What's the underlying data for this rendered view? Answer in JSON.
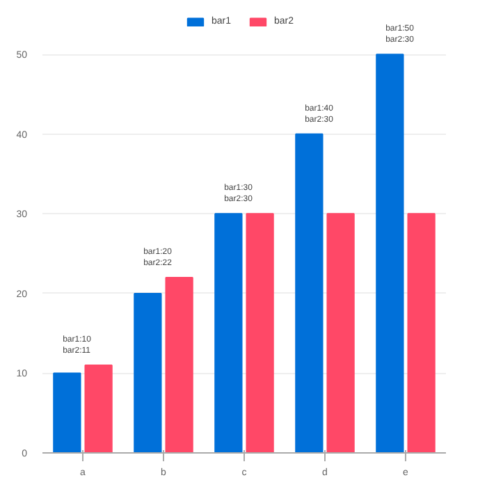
{
  "chart_data": {
    "type": "bar",
    "categories": [
      "a",
      "b",
      "c",
      "d",
      "e"
    ],
    "series": [
      {
        "name": "bar1",
        "color": "#0070d9",
        "values": [
          10,
          20,
          30,
          40,
          50
        ]
      },
      {
        "name": "bar2",
        "color": "#ff4867",
        "values": [
          11,
          22,
          30,
          30,
          30
        ]
      }
    ],
    "annotations": [
      {
        "text": "bar1:10",
        "x": "a",
        "y": 11
      },
      {
        "text": "bar2:11",
        "x": "a",
        "y": 11
      },
      {
        "text": "bar1:20",
        "x": "b",
        "y": 22
      },
      {
        "text": "bar2:22",
        "x": "b",
        "y": 22
      },
      {
        "text": "bar1:30",
        "x": "c",
        "y": 30
      },
      {
        "text": "bar2:30",
        "x": "c",
        "y": 30
      },
      {
        "text": "bar1:40",
        "x": "d",
        "y": 40
      },
      {
        "text": "bar2:30",
        "x": "d",
        "y": 40
      },
      {
        "text": "bar1:50",
        "x": "e",
        "y": 50
      },
      {
        "text": "bar2:30",
        "x": "e",
        "y": 50
      }
    ],
    "ylim": [
      0,
      55
    ],
    "yticks": [
      0,
      10,
      20,
      30,
      40,
      50
    ],
    "grid": "y",
    "legend": "top"
  }
}
